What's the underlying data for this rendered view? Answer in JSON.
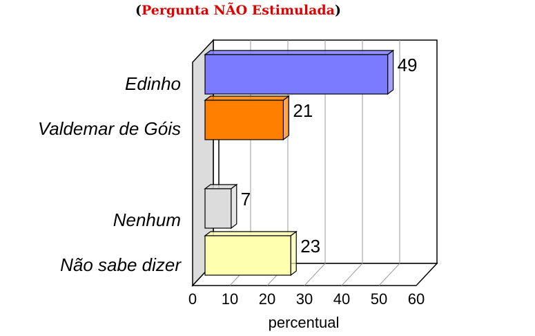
{
  "title": {
    "open": "(",
    "text": "Pergunta NÃO Estimulada",
    "close": ")",
    "color": "#e00000"
  },
  "chart_data": {
    "type": "bar",
    "orientation": "horizontal",
    "categories": [
      "Edinho",
      "Valdemar de Góis",
      "Nenhum",
      "Não sabe dizer"
    ],
    "values": [
      49,
      21,
      7,
      23
    ],
    "value_labels": [
      "49",
      "21",
      "7",
      "23"
    ],
    "colors": [
      "#7b7bff",
      "#ff8000",
      "#dcdcdc",
      "#ffffb0"
    ],
    "xlabel": "percentual",
    "xlim": [
      0,
      60
    ],
    "xticks": [
      "0",
      "10",
      "20",
      "30",
      "40",
      "50",
      "60"
    ],
    "grid": true,
    "style": "3d"
  }
}
